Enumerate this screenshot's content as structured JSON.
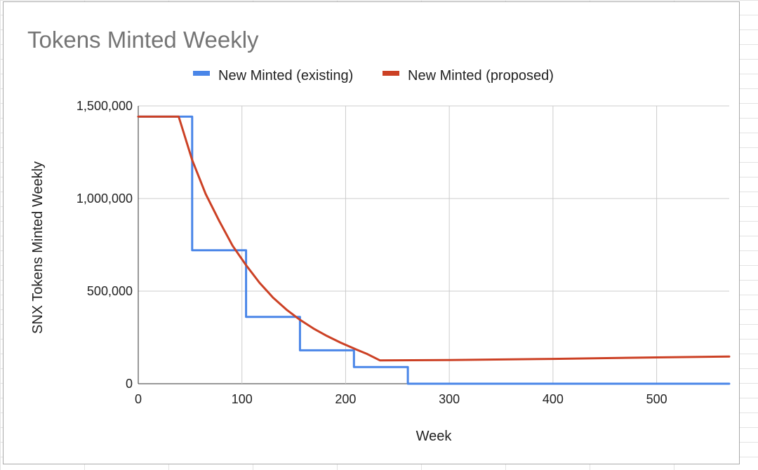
{
  "chart_data": {
    "type": "line",
    "title": "Tokens Minted Weekly",
    "xlabel": "Week",
    "ylabel": "SNX Tokens Minted Weekly",
    "xlim": [
      0,
      570
    ],
    "ylim": [
      0,
      1500000
    ],
    "x_ticks": [
      0,
      100,
      200,
      300,
      400,
      500
    ],
    "x_tick_labels": [
      "0",
      "100",
      "200",
      "300",
      "400",
      "500"
    ],
    "y_ticks": [
      0,
      500000,
      1000000,
      1500000
    ],
    "y_tick_labels": [
      "0",
      "500,000",
      "1,000,000",
      "1,500,000"
    ],
    "grid": true,
    "legend_position": "top",
    "series": [
      {
        "name": "New Minted (existing)",
        "color": "#4a86e8",
        "step": true,
        "x": [
          0,
          52,
          52,
          104,
          104,
          156,
          156,
          208,
          208,
          260,
          260,
          570
        ],
        "y": [
          1442000,
          1442000,
          721000,
          721000,
          360500,
          360500,
          180250,
          180250,
          90125,
          90125,
          0,
          0
        ]
      },
      {
        "name": "New Minted (proposed)",
        "color": "#cc4125",
        "x": [
          0,
          39,
          52,
          65,
          78,
          91,
          104,
          117,
          130,
          143,
          156,
          169,
          182,
          195,
          208,
          221,
          233,
          300,
          400,
          500,
          570
        ],
        "y": [
          1442000,
          1442000,
          1208000,
          1025000,
          880000,
          745000,
          640000,
          545000,
          465000,
          400000,
          345000,
          298000,
          258000,
          222000,
          190000,
          160000,
          126000,
          128000,
          134000,
          142000,
          147000
        ]
      }
    ]
  }
}
